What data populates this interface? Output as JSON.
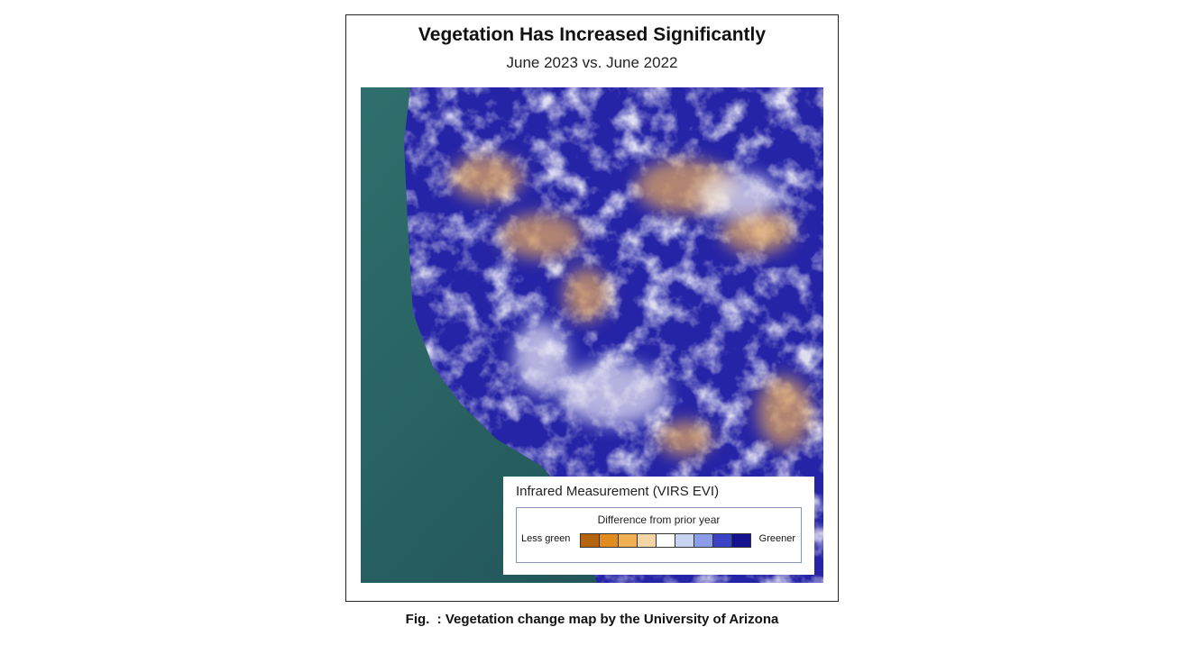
{
  "header": {
    "title": "Vegetation Has Increased Significantly",
    "subtitle": "June 2023 vs. June 2022"
  },
  "legend": {
    "title": "Infrared Measurement (VIRS EVI)",
    "subtitle": "Difference from prior year",
    "low_label": "Less green",
    "high_label": "Greener"
  },
  "caption": "Fig.  : Vegetation change map by the University of Arizona"
}
